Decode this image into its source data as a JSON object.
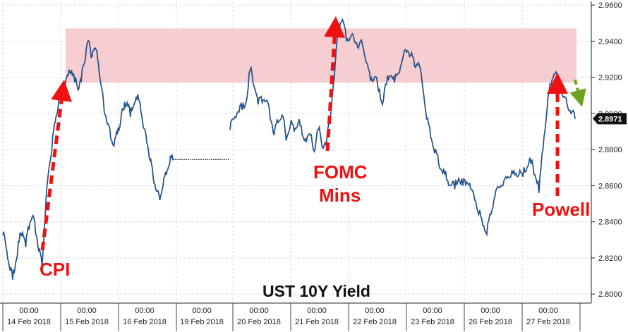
{
  "chart_data": {
    "type": "line",
    "title": "UST 10Y Yield",
    "ylim": [
      2.795,
      2.962
    ],
    "y_ticks": [
      "2.9600",
      "2.9400",
      "2.9200",
      "2.9000",
      "2.8800",
      "2.8600",
      "2.8400",
      "2.8200",
      "2.8000"
    ],
    "y_tick_values": [
      2.96,
      2.94,
      2.92,
      2.9,
      2.88,
      2.86,
      2.84,
      2.82,
      2.8
    ],
    "x_time_labels": [
      "00:00",
      "00:00",
      "00:00",
      "00:00",
      "00:00",
      "00:00",
      "00:00",
      "00:00",
      "00:00",
      "00:00"
    ],
    "x_date_labels": [
      "14 Feb 2018",
      "15 Feb 2018",
      "16 Feb 2018",
      "19 Feb 2018",
      "20 Feb 2018",
      "21 Feb 2018",
      "22 Feb 2018",
      "23 Feb 2018",
      "26 Feb 2018",
      "27 Feb 2018"
    ],
    "last_value": "2.8971",
    "last_value_num": 2.8971,
    "grid": true,
    "line_color": "#1a5fb4",
    "band": {
      "y_from": 2.917,
      "y_to": 2.947,
      "color": "#f4c6c9"
    },
    "holiday_flat_value": 2.8745,
    "series": [
      {
        "values": [
          2.833,
          2.826,
          2.815,
          2.808,
          2.818,
          2.829,
          2.834,
          2.826,
          2.836,
          2.843,
          2.834,
          2.824,
          2.815,
          2.845,
          2.868,
          2.88,
          2.895,
          2.905,
          2.91,
          2.915,
          2.921,
          2.924,
          2.917,
          2.913,
          2.918,
          2.928,
          2.94,
          2.931,
          2.936,
          2.93,
          2.916,
          2.901,
          2.894,
          2.886,
          2.882,
          2.889,
          2.895,
          2.902,
          2.906,
          2.898,
          2.904,
          2.908,
          2.905,
          2.892,
          2.884,
          2.874,
          2.864,
          2.857,
          2.852,
          2.86,
          2.866,
          2.872,
          2.874
        ],
        "segment_end_index": 52
      },
      {
        "values": [
          2.891,
          2.897,
          2.901,
          2.902,
          2.906,
          2.924,
          2.915,
          2.905,
          2.906,
          2.907,
          2.897,
          2.888,
          2.895,
          2.899,
          2.885,
          2.893,
          2.89,
          2.895,
          2.888,
          2.884,
          2.888,
          2.879,
          2.891,
          2.881,
          2.882,
          2.898,
          2.92,
          2.946,
          2.952,
          2.94,
          2.942,
          2.94,
          2.936,
          2.938,
          2.928,
          2.918,
          2.92,
          2.912,
          2.905,
          2.916,
          2.921,
          2.917,
          2.922,
          2.93,
          2.934,
          2.932,
          2.926,
          2.928,
          2.915,
          2.897,
          2.887,
          2.878,
          2.872,
          2.867,
          2.863,
          2.86,
          2.858,
          2.864,
          2.86,
          2.862,
          2.858,
          2.852,
          2.844,
          2.838,
          2.833,
          2.844,
          2.854,
          2.859,
          2.86,
          2.864,
          2.865,
          2.866,
          2.866,
          2.865,
          2.87,
          2.872,
          2.866,
          2.856,
          2.88,
          2.902,
          2.916,
          2.922,
          2.915,
          2.909,
          2.905,
          2.9,
          2.897
        ]
      }
    ],
    "annotations": [
      {
        "text": "CPI"
      },
      {
        "text": "FOMC"
      },
      {
        "text": "Mins"
      },
      {
        "text": "Powell"
      }
    ]
  }
}
